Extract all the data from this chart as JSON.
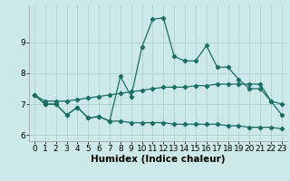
{
  "xlabel": "Humidex (Indice chaleur)",
  "ylabel": "",
  "background_color": "#cce8e8",
  "line_color": "#1a6e62",
  "grid_color": "#b0d0d0",
  "x_data": [
    0,
    1,
    2,
    3,
    4,
    5,
    6,
    7,
    8,
    9,
    10,
    11,
    12,
    13,
    14,
    15,
    16,
    17,
    18,
    19,
    20,
    21,
    22,
    23
  ],
  "line1_y": [
    7.3,
    7.0,
    7.0,
    6.65,
    6.9,
    6.55,
    6.6,
    6.45,
    7.9,
    7.25,
    8.85,
    9.75,
    9.8,
    8.55,
    8.4,
    8.4,
    8.9,
    8.2,
    8.2,
    7.8,
    7.5,
    7.5,
    7.1,
    7.0
  ],
  "line2_y": [
    7.3,
    7.0,
    7.0,
    6.65,
    6.9,
    6.55,
    6.6,
    6.45,
    6.45,
    6.4,
    6.4,
    6.4,
    6.4,
    6.35,
    6.35,
    6.35,
    6.35,
    6.35,
    6.3,
    6.3,
    6.25,
    6.25,
    6.25,
    6.2
  ],
  "line3_y": [
    7.3,
    7.1,
    7.1,
    7.1,
    7.15,
    7.2,
    7.25,
    7.3,
    7.35,
    7.4,
    7.45,
    7.5,
    7.55,
    7.55,
    7.55,
    7.6,
    7.6,
    7.65,
    7.65,
    7.65,
    7.65,
    7.65,
    7.1,
    6.65
  ],
  "ylim": [
    5.8,
    10.2
  ],
  "xlim": [
    -0.5,
    23.5
  ],
  "yticks": [
    6,
    7,
    8,
    9
  ],
  "xticks": [
    0,
    1,
    2,
    3,
    4,
    5,
    6,
    7,
    8,
    9,
    10,
    11,
    12,
    13,
    14,
    15,
    16,
    17,
    18,
    19,
    20,
    21,
    22,
    23
  ],
  "tick_fontsize": 6.5,
  "xlabel_fontsize": 7.5,
  "marker": "D",
  "markersize": 2.2,
  "linewidth": 0.9
}
